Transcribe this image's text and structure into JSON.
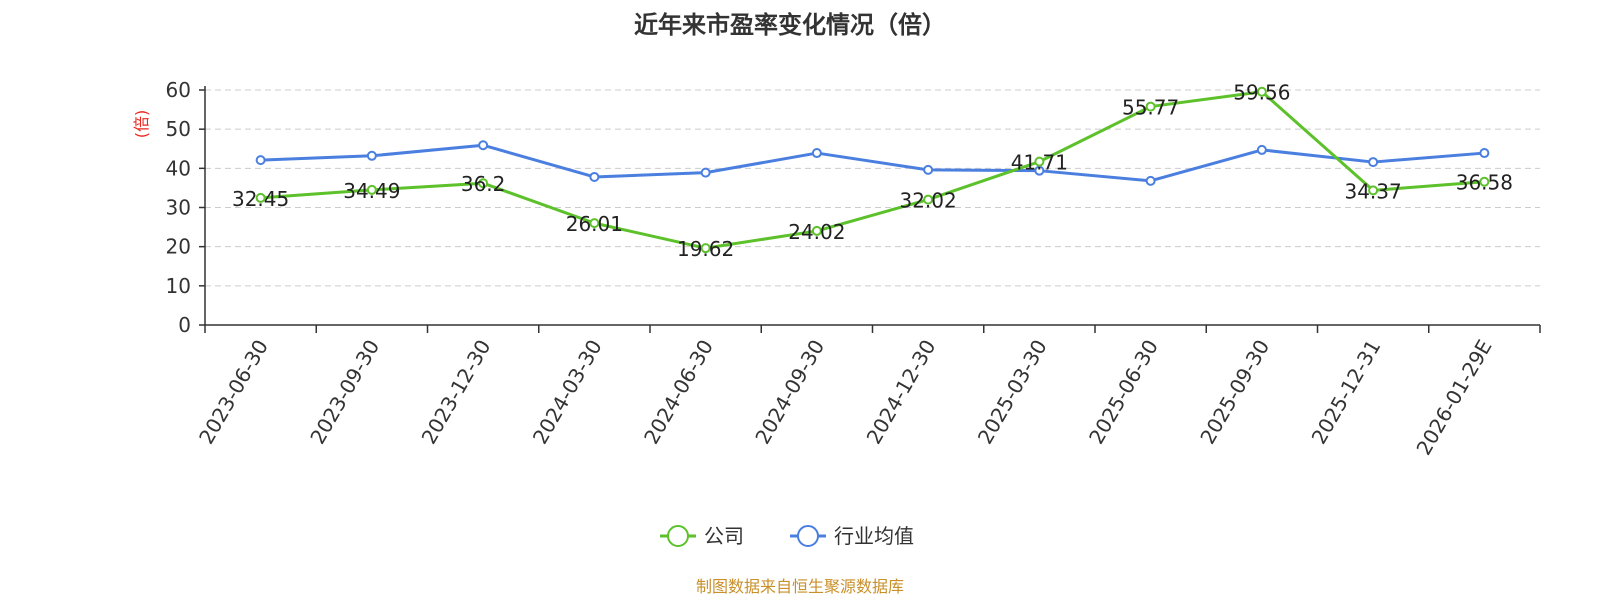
{
  "chart_data": {
    "type": "line",
    "title": "近年来市盈率变化情况（倍）",
    "ylabel": "(倍)",
    "ylim": [
      0,
      60
    ],
    "yticks": [
      0,
      10,
      20,
      30,
      40,
      50,
      60
    ],
    "grid": true,
    "legend_position": "bottom",
    "categories": [
      "2023-06-30",
      "2023-09-30",
      "2023-12-30",
      "2024-03-30",
      "2024-06-30",
      "2024-09-30",
      "2024-12-30",
      "2025-03-30",
      "2025-06-30",
      "2025-09-30",
      "2025-12-31",
      "2026-01-29E"
    ],
    "series": [
      {
        "name": "公司",
        "color": "#5cc12a",
        "values": [
          32.45,
          34.49,
          36.2,
          26.01,
          19.62,
          24.02,
          32.02,
          41.71,
          55.77,
          59.56,
          34.37,
          36.58
        ],
        "labels": [
          "32.45",
          "34.49",
          "36.2",
          "26.01",
          "19.62",
          "24.02",
          "32.02",
          "41.71",
          "55.77",
          "59.56",
          "34.37",
          "36.58"
        ]
      },
      {
        "name": "行业均值",
        "color": "#4a7fe0",
        "values": [
          42.1,
          43.2,
          45.9,
          37.8,
          38.9,
          43.9,
          39.6,
          39.4,
          36.8,
          44.7,
          41.6,
          43.9
        ]
      }
    ],
    "source": "制图数据来自恒生聚源数据库",
    "ylabel_color": "#e8281e",
    "source_color": "#c9902a"
  }
}
